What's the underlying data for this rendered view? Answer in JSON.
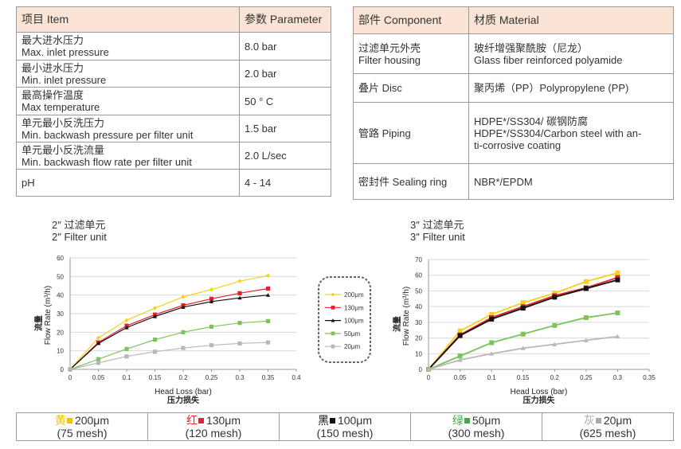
{
  "spec_table": {
    "header": [
      "项目 Item",
      "参数 Parameter"
    ],
    "rows": [
      {
        "item": [
          "最大进水压力",
          "Max. inlet pressure"
        ],
        "value": "8.0 bar"
      },
      {
        "item": [
          "最小进水压力",
          "Min. inlet pressure"
        ],
        "value": "2.0 bar"
      },
      {
        "item": [
          "最高操作温度",
          "Max temperature"
        ],
        "value": "50 ° C"
      },
      {
        "item": [
          "单元最小反洗压力",
          "Min. backwash pressure per filter unit"
        ],
        "value": "1.5 bar"
      },
      {
        "item": [
          "单元最小反洗流量",
          "Min. backwash flow rate per filter unit"
        ],
        "value": "2.0 L/sec"
      },
      {
        "item": [
          "pH"
        ],
        "value": "4 - 14"
      }
    ]
  },
  "material_table": {
    "header": [
      "部件 Component",
      "材质 Material"
    ],
    "rows": [
      {
        "component": [
          "过滤单元外壳",
          "Filter housing"
        ],
        "material": [
          "玻纤增强聚酰胺（尼龙）",
          "Glass fiber reinforced polyamide"
        ]
      },
      {
        "component": [
          "叠片 Disc"
        ],
        "material": [
          "聚丙烯（PP）Polypropylene (PP)"
        ]
      },
      {
        "component": [
          "管路 Piping"
        ],
        "material": [
          "HDPE*/SS304/ 碳钢防腐",
          "HDPE*/SS304/Carbon steel with an-",
          "ti-corrosive coating"
        ]
      },
      {
        "component": [
          "密封件 Sealing ring"
        ],
        "material": [
          "NBR*/EPDM"
        ]
      }
    ]
  },
  "chart_data": [
    {
      "type": "line",
      "title": [
        "2″ 过滤单元",
        "2″ Filter unit"
      ],
      "xlabel": "Head Loss (bar)",
      "xlabel_cn": "压力损失",
      "ylabel": "Flow Rate (m³/h)",
      "ylabel_cn": "流量",
      "x": [
        0,
        0.05,
        0.1,
        0.15,
        0.2,
        0.25,
        0.3,
        0.35
      ],
      "xlim": [
        0,
        0.4
      ],
      "xticks": [
        0,
        0.05,
        0.1,
        0.15,
        0.2,
        0.25,
        0.3,
        0.35,
        0.4
      ],
      "ylim": [
        0,
        60
      ],
      "yticks": [
        0,
        10,
        20,
        30,
        40,
        50,
        60
      ],
      "grid": true,
      "series": [
        {
          "name": "200μm",
          "color": "#f2d21b",
          "marker": "diamond",
          "values": [
            0,
            17,
            26.5,
            33,
            39,
            43,
            47.5,
            50.5
          ]
        },
        {
          "name": "130μm",
          "color": "#e3222b",
          "marker": "square",
          "values": [
            0,
            14.5,
            23.5,
            29.5,
            34.5,
            38,
            41,
            43.5
          ]
        },
        {
          "name": "100μm",
          "color": "#111111",
          "marker": "triangle",
          "values": [
            0,
            14,
            22.5,
            28.5,
            33.5,
            36.5,
            38.5,
            40
          ]
        },
        {
          "name": "50μm",
          "color": "#7cc45a",
          "marker": "square",
          "values": [
            0,
            5.5,
            11,
            16,
            20,
            23,
            25,
            26
          ]
        },
        {
          "name": "20μm",
          "color": "#b8b8b8",
          "marker": "square",
          "values": [
            0,
            3.5,
            7,
            9.5,
            11.5,
            13,
            14,
            14.5
          ]
        }
      ]
    },
    {
      "type": "line",
      "title": [
        "3″ 过滤单元",
        "3″ Filter unit"
      ],
      "xlabel": "Head Loss (bar)",
      "xlabel_cn": "压力损失",
      "ylabel": "Flow Rate (m³/h)",
      "ylabel_cn": "流量",
      "x": [
        0,
        0.05,
        0.1,
        0.15,
        0.2,
        0.25,
        0.3
      ],
      "xlim": [
        0,
        0.35
      ],
      "xticks": [
        0,
        0.05,
        0.1,
        0.15,
        0.2,
        0.25,
        0.3,
        0.35
      ],
      "ylim": [
        0,
        70
      ],
      "yticks": [
        0,
        10,
        20,
        30,
        40,
        50,
        60,
        70
      ],
      "grid": true,
      "series": [
        {
          "color": "#f2d21b",
          "marker": "square",
          "values": [
            0,
            24.5,
            35,
            42.5,
            48.5,
            56,
            61.5
          ]
        },
        {
          "color": "#e3222b",
          "marker": "square",
          "values": [
            0,
            22,
            33,
            40,
            47,
            52,
            58.5
          ]
        },
        {
          "color": "#111111",
          "marker": "square",
          "values": [
            0,
            21.5,
            32,
            39,
            46,
            51.5,
            57
          ]
        },
        {
          "color": "#7cc45a",
          "marker": "square",
          "values": [
            0,
            8.5,
            17,
            22.5,
            28,
            33,
            36
          ]
        },
        {
          "color": "#b8b8b8",
          "marker": "triangle",
          "values": [
            0,
            6,
            10,
            13.5,
            16,
            18.5,
            21
          ]
        }
      ]
    }
  ],
  "mesh_table": [
    {
      "color_word": "黄",
      "color": "#f2c100",
      "size": "200μm",
      "mesh": "(75 mesh)"
    },
    {
      "color_word": "红",
      "color": "#e3222b",
      "size": "130μm",
      "mesh": "(120 mesh)"
    },
    {
      "color_word": "黑",
      "color": "#111111",
      "size": "100μm",
      "mesh": "(150 mesh)"
    },
    {
      "color_word": "绿",
      "color": "#3cb043",
      "size": "50μm",
      "mesh": "(300 mesh)"
    },
    {
      "color_word": "灰",
      "color": "#aaaaaa",
      "size": "20μm",
      "mesh": "(625 mesh)"
    }
  ]
}
